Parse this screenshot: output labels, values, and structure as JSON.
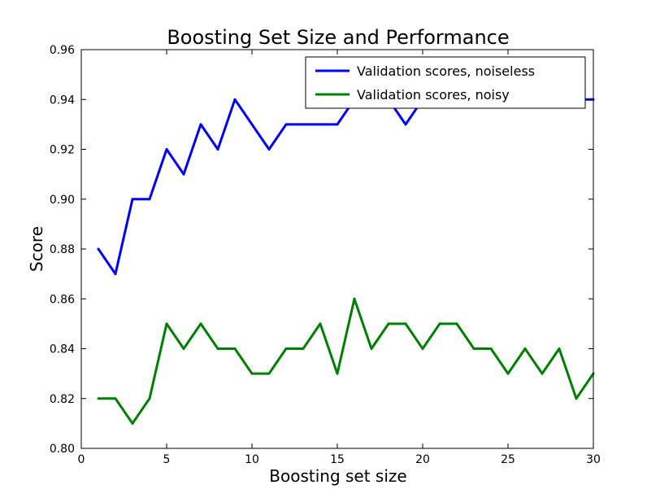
{
  "chart_data": {
    "type": "line",
    "title": "Boosting Set Size and Performance",
    "xlabel": "Boosting set size",
    "ylabel": "Score",
    "xlim": [
      0,
      30
    ],
    "ylim": [
      0.8,
      0.96
    ],
    "grid": false,
    "legend_position": "top-right",
    "x_ticks": [
      "0",
      "5",
      "10",
      "15",
      "20",
      "25",
      "30"
    ],
    "y_ticks": [
      "0.80",
      "0.82",
      "0.84",
      "0.86",
      "0.88",
      "0.90",
      "0.92",
      "0.94",
      "0.96"
    ],
    "x": [
      1,
      2,
      3,
      4,
      5,
      6,
      7,
      8,
      9,
      10,
      11,
      12,
      13,
      14,
      15,
      16,
      17,
      18,
      19,
      20,
      21,
      22,
      23,
      24,
      25,
      26,
      27,
      28,
      29,
      30
    ],
    "series": [
      {
        "name": "Validation scores, noiseless",
        "color": "#0000ff",
        "values": [
          0.88,
          0.87,
          0.9,
          0.9,
          0.92,
          0.91,
          0.93,
          0.92,
          0.94,
          0.93,
          0.92,
          0.93,
          0.93,
          0.93,
          0.93,
          0.94,
          0.94,
          0.94,
          0.93,
          0.94,
          0.94,
          0.94,
          0.94,
          0.94,
          0.94,
          0.94,
          0.94,
          0.94,
          0.94,
          0.94
        ]
      },
      {
        "name": "Validation scores, noisy",
        "color": "#008000",
        "values": [
          0.82,
          0.82,
          0.81,
          0.82,
          0.85,
          0.84,
          0.85,
          0.84,
          0.84,
          0.83,
          0.83,
          0.84,
          0.84,
          0.85,
          0.83,
          0.86,
          0.84,
          0.85,
          0.85,
          0.84,
          0.85,
          0.85,
          0.84,
          0.84,
          0.83,
          0.84,
          0.83,
          0.84,
          0.82,
          0.83
        ]
      }
    ]
  }
}
